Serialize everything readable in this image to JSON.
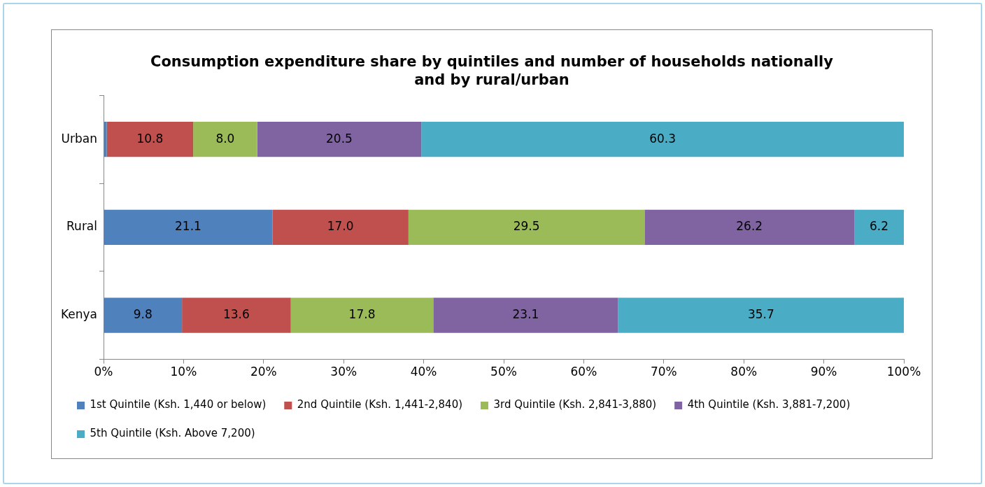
{
  "chart_data": {
    "type": "bar",
    "orientation": "horizontal",
    "stacked": true,
    "title": "Consumption expenditure share by quintiles and number of households nationally and by rural/urban",
    "categories": [
      "Urban",
      "Rural",
      "Kenya"
    ],
    "series": [
      {
        "name": "1st Quintile (Ksh. 1,440 or below)",
        "color": "#4f81bd",
        "values": [
          0.4,
          21.1,
          9.8
        ],
        "value_labels": [
          null,
          "21.1",
          "9.8"
        ]
      },
      {
        "name": "2nd Quintile (Ksh. 1,441-2,840)",
        "color": "#c0504d",
        "values": [
          10.8,
          17.0,
          13.6
        ],
        "value_labels": [
          "10.8",
          "17.0",
          "13.6"
        ]
      },
      {
        "name": "3rd Quintile (Ksh. 2,841-3,880)",
        "color": "#9bbb59",
        "values": [
          8.0,
          29.5,
          17.8
        ],
        "value_labels": [
          "8.0",
          "29.5",
          "17.8"
        ]
      },
      {
        "name": "4th Quintile (Ksh. 3,881-7,200)",
        "color": "#8064a2",
        "values": [
          20.5,
          26.2,
          23.1
        ],
        "value_labels": [
          "20.5",
          "26.2",
          "23.1"
        ]
      },
      {
        "name": "5th Quintile (Ksh. Above 7,200)",
        "color": "#4bacc6",
        "values": [
          60.3,
          6.2,
          35.7
        ],
        "value_labels": [
          "60.3",
          "6.2",
          "35.7"
        ]
      }
    ],
    "xlim": [
      0,
      100
    ],
    "xticks": [
      {
        "value": 0,
        "label": "0%"
      },
      {
        "value": 10,
        "label": "10%"
      },
      {
        "value": 20,
        "label": "20%"
      },
      {
        "value": 30,
        "label": "30%"
      },
      {
        "value": 40,
        "label": "40%"
      },
      {
        "value": 50,
        "label": "50%"
      },
      {
        "value": 60,
        "label": "60%"
      },
      {
        "value": 70,
        "label": "70%"
      },
      {
        "value": 80,
        "label": "80%"
      },
      {
        "value": 90,
        "label": "90%"
      },
      {
        "value": 100,
        "label": "100%"
      }
    ],
    "grid": false,
    "legend": "bottom"
  }
}
